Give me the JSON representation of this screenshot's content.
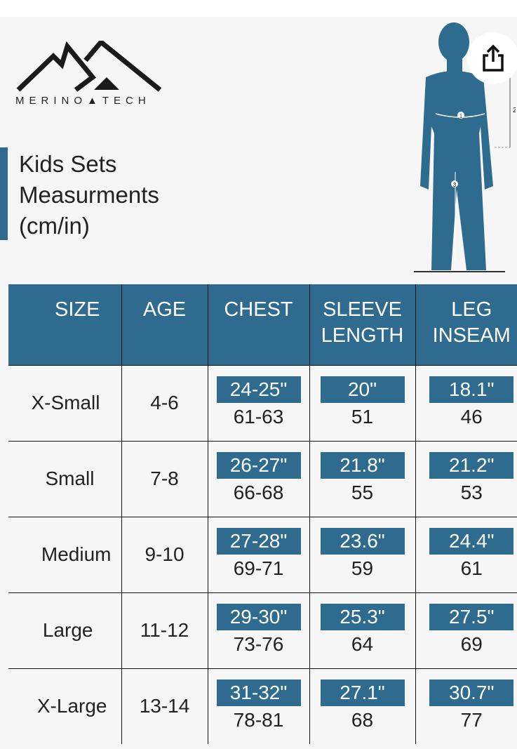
{
  "brand": {
    "name": "MERINO TECH",
    "logo_text": "MERINO▲TECH"
  },
  "title": {
    "line1": "Kids Sets",
    "line2": "Measurments",
    "line3": "(cm/in)"
  },
  "figure": {
    "markers": [
      "1",
      "2",
      "3"
    ]
  },
  "share_button": {
    "icon": "share-icon"
  },
  "colors": {
    "accent": "#2f6b8f",
    "background": "#f6f6f6"
  },
  "table": {
    "headers": [
      "SIZE",
      "AGE",
      "CHEST",
      "SLEEVE LENGTH",
      "LEG INSEAM"
    ],
    "rows": [
      {
        "size": "X-Small",
        "age": "4-6",
        "chest_in": "24-25\"",
        "chest_cm": "61-63",
        "sleeve_in": "20\"",
        "sleeve_cm": "51",
        "leg_in": "18.1\"",
        "leg_cm": "46"
      },
      {
        "size": "Small",
        "age": "7-8",
        "chest_in": "26-27\"",
        "chest_cm": "66-68",
        "sleeve_in": "21.8\"",
        "sleeve_cm": "55",
        "leg_in": "21.2\"",
        "leg_cm": "53"
      },
      {
        "size": "Medium",
        "age": "9-10",
        "chest_in": "27-28\"",
        "chest_cm": "69-71",
        "sleeve_in": "23.6\"",
        "sleeve_cm": "59",
        "leg_in": "24.4\"",
        "leg_cm": "61"
      },
      {
        "size": "Large",
        "age": "11-12",
        "chest_in": "29-30\"",
        "chest_cm": "73-76",
        "sleeve_in": "25.3\"",
        "sleeve_cm": "64",
        "leg_in": "27.5\"",
        "leg_cm": "69"
      },
      {
        "size": "X-Large",
        "age": "13-14",
        "chest_in": "31-32\"",
        "chest_cm": "78-81",
        "sleeve_in": "27.1\"",
        "sleeve_cm": "68",
        "leg_in": "30.7\"",
        "leg_cm": "77"
      }
    ]
  }
}
